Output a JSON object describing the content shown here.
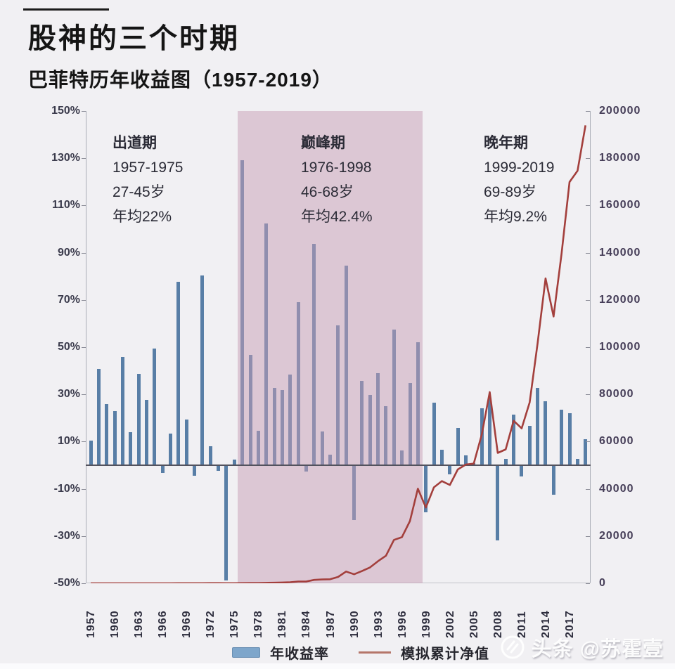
{
  "header": {
    "title": "股神的三个时期",
    "subtitle": "巴菲特历年收益图（1957-2019）"
  },
  "annotations": [
    {
      "name": "出道期",
      "years": "1957-1975",
      "ages": "27-45岁",
      "avg": "年均22%"
    },
    {
      "name": "巅峰期",
      "years": "1976-1998",
      "ages": "46-68岁",
      "avg": "年均42.4%"
    },
    {
      "name": "晚年期",
      "years": "1999-2019",
      "ages": "69-89岁",
      "avg": "年均9.2%"
    }
  ],
  "legend": {
    "bar_label": "年收益率",
    "line_label": "模拟累计净值",
    "bar_color": "#7ea6cb",
    "line_color": "#b5766a"
  },
  "watermark": {
    "icon": "toutiao-logo",
    "text": "头条 @苏霍壹"
  },
  "colors": {
    "bar": "#587ea6",
    "line": "#a33f3c",
    "highlight": "rgba(199,157,182,0.50)",
    "background": "#f1f0f3"
  },
  "chart_data": {
    "type": "bar+line",
    "title": "巴菲特历年收益图（1957-2019）",
    "grid": false,
    "legend_position": "bottom",
    "years": [
      1957,
      1958,
      1959,
      1960,
      1961,
      1962,
      1963,
      1964,
      1965,
      1966,
      1967,
      1968,
      1969,
      1970,
      1971,
      1972,
      1973,
      1974,
      1975,
      1976,
      1977,
      1978,
      1979,
      1980,
      1981,
      1982,
      1983,
      1984,
      1985,
      1986,
      1987,
      1988,
      1989,
      1990,
      1991,
      1992,
      1993,
      1994,
      1995,
      1996,
      1997,
      1998,
      1999,
      2000,
      2001,
      2002,
      2003,
      2004,
      2005,
      2006,
      2007,
      2008,
      2009,
      2010,
      2011,
      2012,
      2013,
      2014,
      2015,
      2016,
      2017,
      2018,
      2019
    ],
    "series": [
      {
        "name": "年收益率",
        "type": "bar",
        "axis": "left",
        "unit": "%",
        "values": [
          10.4,
          40.9,
          25.9,
          22.8,
          45.9,
          13.9,
          38.7,
          27.8,
          49.5,
          -3.4,
          13.3,
          77.8,
          19.4,
          -4.6,
          80.5,
          8.1,
          -2.5,
          -48.7,
          2.5,
          129.3,
          46.8,
          14.5,
          102.5,
          32.8,
          31.8,
          38.4,
          69.0,
          -2.7,
          93.7,
          14.2,
          4.6,
          59.3,
          84.6,
          -23.1,
          35.6,
          29.8,
          38.9,
          25.0,
          57.4,
          6.2,
          34.9,
          52.2,
          -19.9,
          26.6,
          6.5,
          -3.8,
          15.8,
          4.3,
          0.8,
          24.1,
          28.7,
          -31.8,
          2.7,
          21.4,
          -4.7,
          16.8,
          32.7,
          27.0,
          -12.5,
          23.4,
          21.9,
          2.8,
          11.0
        ]
      },
      {
        "name": "模拟累计净值",
        "type": "line",
        "axis": "right",
        "values": [
          1.1,
          1.6,
          2.0,
          2.4,
          3.5,
          4.0,
          5.5,
          7.1,
          10.6,
          10.2,
          11.6,
          20.6,
          24.6,
          23.5,
          42.4,
          45.8,
          44.7,
          22.9,
          23.5,
          53.9,
          79.1,
          90.5,
          183,
          243,
          321,
          444,
          750,
          730,
          1414,
          1615,
          1689,
          2691,
          4968,
          3820,
          5180,
          6724,
          9340,
          11675,
          18376,
          19516,
          26327,
          40069,
          32096,
          40633,
          43274,
          41630,
          48207,
          50280,
          50682,
          62897,
          80948,
          55207,
          56697,
          68831,
          65596,
          76616,
          101669,
          129119,
          112980,
          139417,
          169949,
          174708,
          193925
        ]
      }
    ],
    "left_axis": {
      "min": -50,
      "max": 150,
      "tick_step": 20,
      "tick_labels": [
        "150%",
        "130%",
        "110%",
        "90%",
        "70%",
        "50%",
        "30%",
        "10%",
        "-10%",
        "-30%",
        "-50%"
      ]
    },
    "right_axis": {
      "min": 0,
      "max": 200000,
      "tick_step": 20000,
      "tick_labels": [
        "200000",
        "180000",
        "160000",
        "140000",
        "120000",
        "100000",
        "80000",
        "60000",
        "40000",
        "20000",
        "0"
      ]
    },
    "x_tick_labels": [
      "1957",
      "1960",
      "1963",
      "1966",
      "1969",
      "1972",
      "1975",
      "1978",
      "1981",
      "1984",
      "1987",
      "1990",
      "1993",
      "1996",
      "1999",
      "2002",
      "2005",
      "2008",
      "2011",
      "2014",
      "2017"
    ],
    "x_tick_interval": 3,
    "highlight_region": {
      "from_year": 1976,
      "to_year": 1998
    }
  }
}
